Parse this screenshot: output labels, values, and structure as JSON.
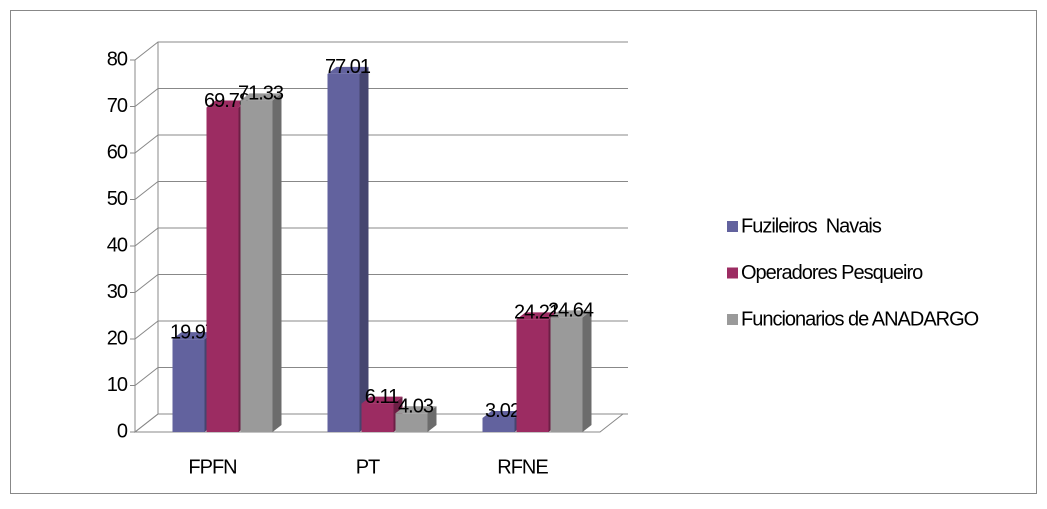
{
  "chart_data": {
    "type": "bar3d",
    "categories": [
      "FPFN",
      "PT",
      "RFNE"
    ],
    "series": [
      {
        "name": "Fuzileiros  Navais",
        "color": "#62629e",
        "values": [
          19.97,
          77.01,
          3.02
        ]
      },
      {
        "name": "Operadores Pesqueiro",
        "color": "#9c2c62",
        "values": [
          69.78,
          6.11,
          24.21
        ]
      },
      {
        "name": "Funcionarios de ANADARGO",
        "color": "#9a9a9a",
        "values": [
          71.33,
          4.03,
          24.64
        ]
      }
    ],
    "ylim": [
      0,
      80
    ],
    "yticks": [
      0,
      10,
      20,
      30,
      40,
      50,
      60,
      70,
      80
    ],
    "grid": true,
    "legend": "right"
  }
}
